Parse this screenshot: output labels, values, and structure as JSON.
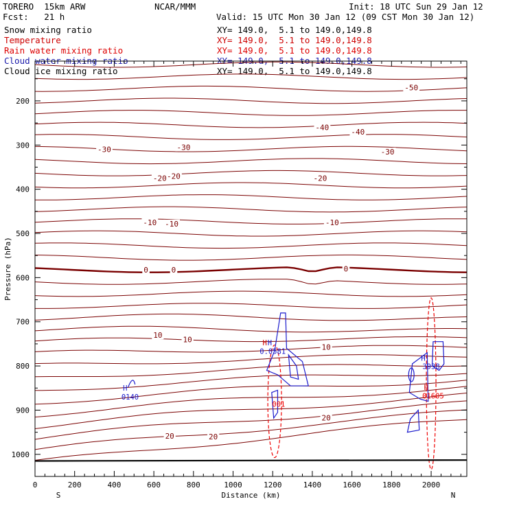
{
  "header": {
    "model": "TORERO  15km ARW",
    "center": "NCAR/MMM",
    "init": "Init: 18 UTC Sun 29 Jan 12",
    "fcst": "Fcst:   21 h",
    "valid": "Valid: 15 UTC Mon 30 Jan 12 (09 CST Mon 30 Jan 12)",
    "fields": [
      {
        "name": "Snow mixing ratio",
        "color": "#000000",
        "xy": "XY= 149.0,  5.1 to 149.0,149.8"
      },
      {
        "name": "Temperature",
        "color": "#cc0000",
        "xy": "XY= 149.0,  5.1 to 149.0,149.8"
      },
      {
        "name": "Rain water mixing ratio",
        "color": "#dd0000",
        "xy": "XY= 149.0,  5.1 to 149.0,149.8"
      },
      {
        "name": "Cloud water mixing ratio",
        "color": "#1a1aaa",
        "xy": "XY= 149.0,  5.1 to 149.0,149.8"
      },
      {
        "name": "Cloud ice mixing ratio",
        "color": "#000000",
        "xy": "XY= 149.0,  5.1 to 149.0,149.8"
      }
    ]
  },
  "chart_data": {
    "type": "cross-section contour",
    "xlabel": "Distance (km)",
    "ylabel": "Pressure (hPa)",
    "x_ticks": [
      0,
      200,
      400,
      600,
      800,
      1000,
      1200,
      1400,
      1600,
      1800,
      2000
    ],
    "y_ticks": [
      200,
      300,
      400,
      500,
      600,
      700,
      800,
      900,
      1000
    ],
    "xlim": [
      0,
      2180
    ],
    "ylim": [
      1050,
      110
    ],
    "y_scale": "linear pressure, top to bottom",
    "left_end": "S",
    "right_end": "N",
    "grid": false,
    "colors": {
      "temperature": "#7a0000",
      "zero_isotherm": "#7a0000",
      "rain": "#ee0000",
      "cloud_water": "#1a1acc",
      "ground": "#000000"
    },
    "isotherm_interval_C": 2,
    "isotherm_labels": [
      {
        "text": "-50",
        "x": 1900,
        "p": 170
      },
      {
        "text": "-40",
        "x": 1450,
        "p": 260
      },
      {
        "text": "-40",
        "x": 1630,
        "p": 270
      },
      {
        "text": "-30",
        "x": 350,
        "p": 310
      },
      {
        "text": "-30",
        "x": 750,
        "p": 305
      },
      {
        "text": "-30",
        "x": 1780,
        "p": 315
      },
      {
        "text": "-20",
        "x": 700,
        "p": 370
      },
      {
        "text": "-20",
        "x": 630,
        "p": 375
      },
      {
        "text": "-20",
        "x": 1440,
        "p": 375
      },
      {
        "text": "-10",
        "x": 580,
        "p": 475
      },
      {
        "text": "-10",
        "x": 690,
        "p": 478
      },
      {
        "text": "-10",
        "x": 1500,
        "p": 475
      },
      {
        "text": "0",
        "x": 560,
        "p": 582
      },
      {
        "text": "0",
        "x": 700,
        "p": 582
      },
      {
        "text": "0",
        "x": 1570,
        "p": 580
      },
      {
        "text": "10",
        "x": 620,
        "p": 730
      },
      {
        "text": "10",
        "x": 770,
        "p": 740
      },
      {
        "text": "10",
        "x": 1470,
        "p": 757
      },
      {
        "text": "20",
        "x": 680,
        "p": 958
      },
      {
        "text": "20",
        "x": 900,
        "p": 960
      },
      {
        "text": "20",
        "x": 1470,
        "p": 917
      }
    ],
    "extrema_labels": [
      {
        "text": "H",
        "x": 455,
        "p": 856,
        "color": "#1a1acc"
      },
      {
        "text": "0140",
        "x": 480,
        "p": 876,
        "color": "#1a1acc"
      },
      {
        "text": "H",
        "x": 1160,
        "p": 753,
        "color": "#cc0000"
      },
      {
        "text": "H",
        "x": 1185,
        "p": 753,
        "color": "#1a1acc"
      },
      {
        "text": "0.0581",
        "x": 1200,
        "p": 773,
        "color": "#1a1acc"
      },
      {
        "text": "001",
        "x": 1230,
        "p": 892,
        "color": "#ee0000"
      },
      {
        "text": "H",
        "x": 1960,
        "p": 788,
        "color": "#1a1acc"
      },
      {
        "text": "3938",
        "x": 2000,
        "p": 807,
        "color": "#1a1acc"
      },
      {
        "text": "H",
        "x": 1975,
        "p": 854,
        "color": "#cc0000"
      },
      {
        "text": "01605",
        "x": 2010,
        "p": 874,
        "color": "#ee0000"
      }
    ]
  }
}
